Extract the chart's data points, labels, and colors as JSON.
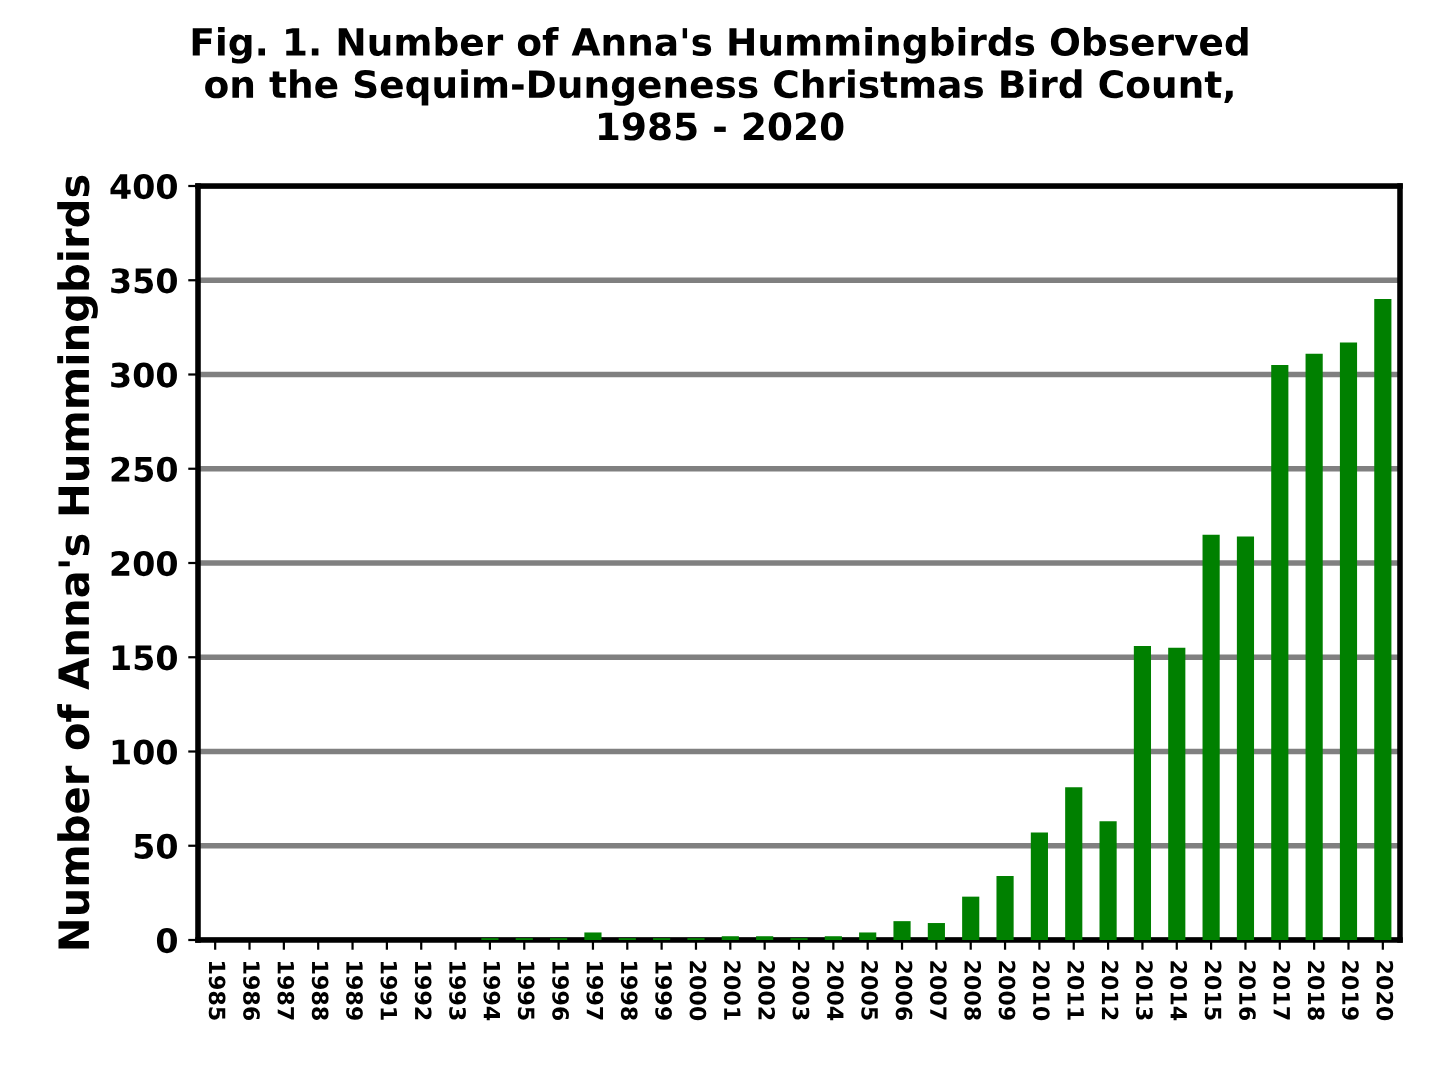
{
  "chart_data": {
    "type": "bar",
    "title": "Fig. 1. Number of Anna's Hummingbirds Observed\non the Sequim-Dungeness Christmas Bird Count,\n1985 - 2020",
    "ylabel": "Number of Anna's Hummingbirds",
    "categories": [
      "1985",
      "1986",
      "1987",
      "1988",
      "1989",
      "1991",
      "1992",
      "1993",
      "1994",
      "1995",
      "1996",
      "1997",
      "1998",
      "1999",
      "2000",
      "2001",
      "2002",
      "2003",
      "2004",
      "2005",
      "2006",
      "2007",
      "2008",
      "2009",
      "2010",
      "2011",
      "2012",
      "2013",
      "2014",
      "2015",
      "2016",
      "2017",
      "2018",
      "2019",
      "2020"
    ],
    "values": [
      0,
      0,
      0,
      0,
      0,
      0,
      0,
      0,
      1,
      1,
      1,
      4,
      1,
      1,
      1,
      2,
      2,
      1,
      2,
      4,
      10,
      9,
      23,
      34,
      57,
      81,
      63,
      156,
      155,
      215,
      214,
      305,
      311,
      317,
      340
    ],
    "color": "#008000",
    "ylim": [
      0,
      400
    ],
    "yticks": [
      0,
      50,
      100,
      150,
      200,
      250,
      300,
      350,
      400
    ],
    "grid": "y"
  }
}
